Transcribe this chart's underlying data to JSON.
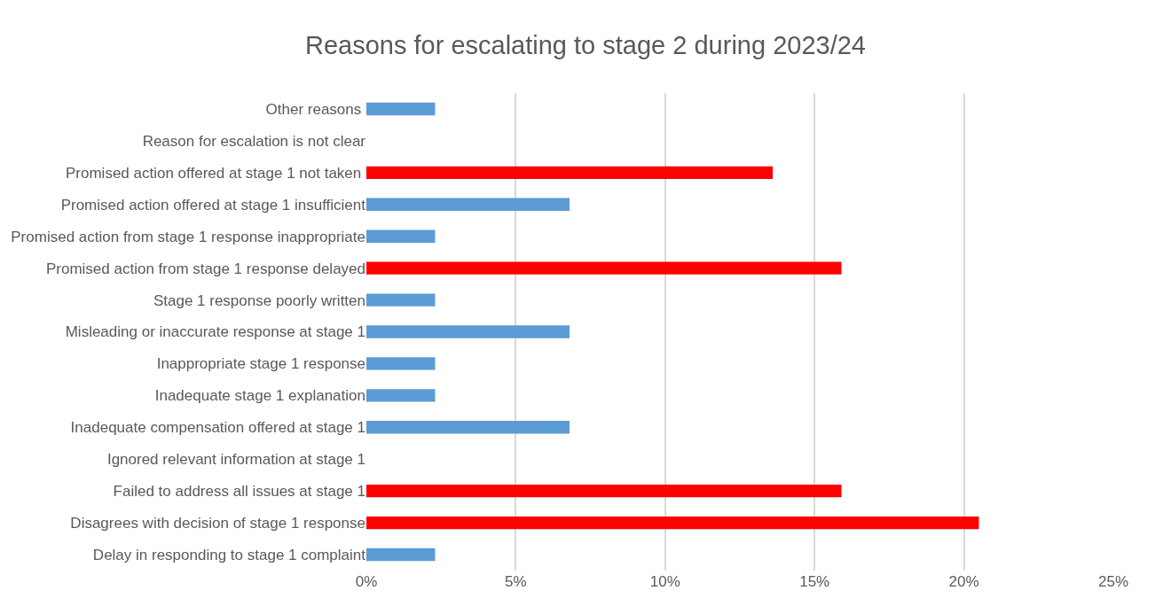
{
  "chart_data": {
    "type": "bar",
    "orientation": "horizontal",
    "title": "Reasons for escalating to stage 2 during 2023/24",
    "categories": [
      "Other reasons ",
      "Reason for escalation is not clear",
      "Promised action offered at stage 1 not taken ",
      "Promised action offered at stage 1 insufficient",
      "Promised action from stage 1 response inappropriate",
      "Promised action from stage 1 response delayed",
      "Stage 1 response poorly written",
      "Misleading or inaccurate response at stage 1",
      "Inappropriate stage 1 response",
      "Inadequate stage 1 explanation",
      "Inadequate compensation offered at stage 1",
      "Ignored relevant information at stage 1",
      "Failed to address all issues at stage 1",
      "Disagrees with decision of stage 1 response",
      "Delay in responding to stage 1 complaint"
    ],
    "values": [
      2.3,
      0,
      13.6,
      6.8,
      2.3,
      15.9,
      2.3,
      6.8,
      2.3,
      2.3,
      6.8,
      0,
      15.9,
      20.5,
      2.3
    ],
    "colors": [
      "#5b9bd5",
      "#5b9bd5",
      "#ff0000",
      "#5b9bd5",
      "#5b9bd5",
      "#ff0000",
      "#5b9bd5",
      "#5b9bd5",
      "#5b9bd5",
      "#5b9bd5",
      "#5b9bd5",
      "#5b9bd5",
      "#ff0000",
      "#ff0000",
      "#5b9bd5"
    ],
    "xlim": [
      0,
      25
    ],
    "xticks": [
      {
        "value": 0,
        "label": "0%"
      },
      {
        "value": 5,
        "label": "5%"
      },
      {
        "value": 10,
        "label": "10%"
      },
      {
        "value": 15,
        "label": "15%"
      },
      {
        "value": 20,
        "label": "20%"
      },
      {
        "value": 25,
        "label": "25%"
      }
    ],
    "grid": "x"
  }
}
